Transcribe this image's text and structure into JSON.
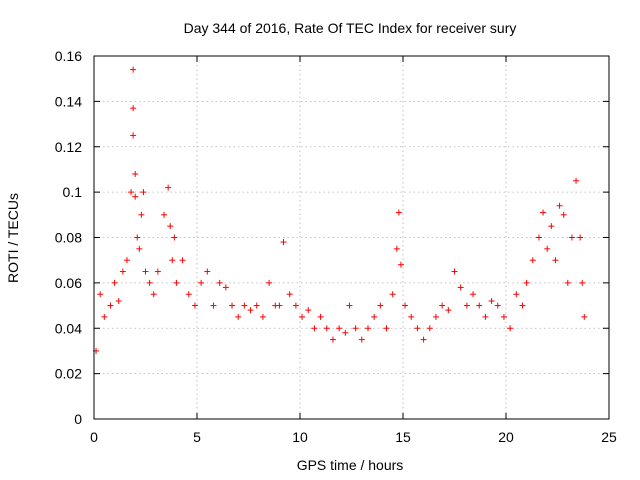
{
  "chart_data": {
    "type": "scatter",
    "title": "Day 344 of 2016, Rate Of TEC Index for receiver sury",
    "xlabel": "GPS time / hours",
    "ylabel": "ROTI / TECUs",
    "xlim": [
      0,
      25
    ],
    "ylim": [
      0,
      0.16
    ],
    "x_ticks": [
      "0",
      "5",
      "10",
      "15",
      "20",
      "25"
    ],
    "y_ticks": [
      "0",
      "0.02",
      "0.04",
      "0.06",
      "0.08",
      "0.1",
      "0.12",
      "0.14",
      "0.16"
    ],
    "grid": true,
    "marker": "+",
    "color": "#ff0000",
    "series": [
      {
        "x": [
          0.1,
          0.3,
          0.5,
          0.8,
          1.0,
          1.2,
          1.4,
          1.6,
          1.8,
          1.9,
          1.9,
          1.9,
          2.0,
          2.0,
          2.1,
          2.2,
          2.3,
          2.4,
          2.5,
          2.7,
          2.9,
          3.1,
          3.4,
          3.6,
          3.7,
          3.8,
          3.9,
          4.0,
          4.3,
          4.6,
          4.9,
          5.2,
          5.5,
          5.8,
          6.1,
          6.4,
          6.7,
          7.0,
          7.3,
          7.6,
          7.9,
          8.2,
          8.5,
          8.8,
          9.0,
          9.2,
          9.5,
          9.8,
          10.1,
          10.4,
          10.7,
          11.0,
          11.3,
          11.6,
          11.9,
          12.2,
          12.4,
          12.7,
          13.0,
          13.3,
          13.6,
          13.9,
          14.2,
          14.5,
          14.7,
          14.8,
          14.9,
          15.1,
          15.4,
          15.7,
          16.0,
          16.3,
          16.6,
          16.9,
          17.2,
          17.5,
          17.8,
          18.1,
          18.4,
          18.7,
          19.0,
          19.3,
          19.6,
          19.9,
          20.2,
          20.5,
          20.8,
          21.0,
          21.3,
          21.6,
          21.8,
          22.0,
          22.2,
          22.4,
          22.6,
          22.8,
          23.0,
          23.2,
          23.4,
          23.6,
          23.7,
          23.8
        ],
        "y": [
          0.03,
          0.055,
          0.045,
          0.05,
          0.06,
          0.052,
          0.065,
          0.07,
          0.1,
          0.125,
          0.137,
          0.154,
          0.108,
          0.098,
          0.08,
          0.075,
          0.09,
          0.1,
          0.065,
          0.06,
          0.055,
          0.065,
          0.09,
          0.102,
          0.085,
          0.07,
          0.08,
          0.06,
          0.07,
          0.055,
          0.05,
          0.06,
          0.065,
          0.05,
          0.06,
          0.058,
          0.05,
          0.045,
          0.05,
          0.048,
          0.05,
          0.045,
          0.06,
          0.05,
          0.05,
          0.078,
          0.055,
          0.05,
          0.045,
          0.048,
          0.04,
          0.045,
          0.04,
          0.035,
          0.04,
          0.038,
          0.05,
          0.04,
          0.035,
          0.04,
          0.045,
          0.05,
          0.04,
          0.055,
          0.075,
          0.091,
          0.068,
          0.05,
          0.045,
          0.04,
          0.035,
          0.04,
          0.045,
          0.05,
          0.048,
          0.065,
          0.058,
          0.05,
          0.055,
          0.05,
          0.045,
          0.052,
          0.05,
          0.045,
          0.04,
          0.055,
          0.05,
          0.06,
          0.07,
          0.08,
          0.091,
          0.075,
          0.085,
          0.07,
          0.094,
          0.09,
          0.06,
          0.08,
          0.105,
          0.08,
          0.06,
          0.045
        ]
      }
    ]
  }
}
